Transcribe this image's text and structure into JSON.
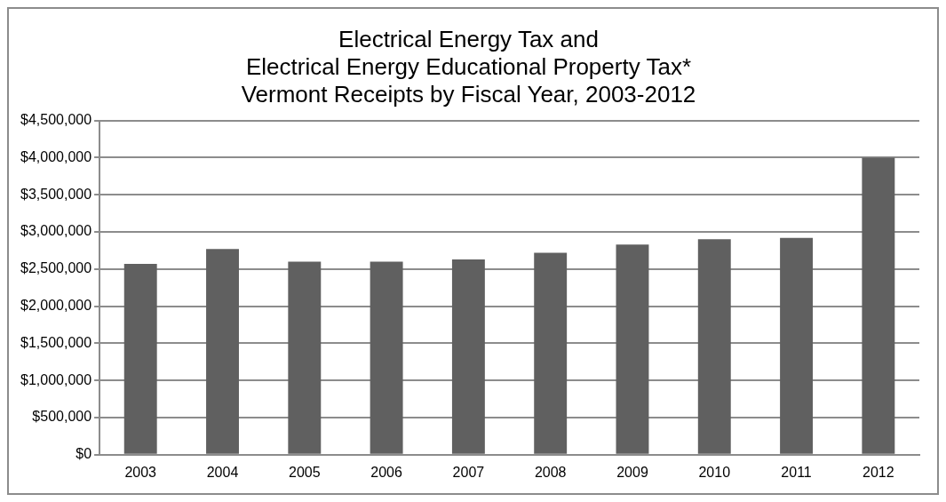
{
  "chart_data": {
    "type": "bar",
    "title": [
      "Electrical Energy Tax and",
      "Electrical Energy Educational Property Tax*",
      "Vermont Receipts by Fiscal Year, 2003-2012"
    ],
    "categories": [
      "2003",
      "2004",
      "2005",
      "2006",
      "2007",
      "2008",
      "2009",
      "2010",
      "2011",
      "2012"
    ],
    "values": [
      2570000,
      2770000,
      2600000,
      2600000,
      2630000,
      2720000,
      2830000,
      2900000,
      2920000,
      4000000
    ],
    "color": "#606060",
    "ylim": [
      0,
      4500000
    ],
    "yticks": [
      {
        "value": 0,
        "label": "$0"
      },
      {
        "value": 500000,
        "label": "$500,000"
      },
      {
        "value": 1000000,
        "label": "$1,000,000"
      },
      {
        "value": 1500000,
        "label": "$1,500,000"
      },
      {
        "value": 2000000,
        "label": "$2,000,000"
      },
      {
        "value": 2500000,
        "label": "$2,500,000"
      },
      {
        "value": 3000000,
        "label": "$3,000,000"
      },
      {
        "value": 3500000,
        "label": "$3,500,000"
      },
      {
        "value": 4000000,
        "label": "$4,000,000"
      },
      {
        "value": 4500000,
        "label": "$4,500,000"
      }
    ],
    "grid": "y"
  }
}
